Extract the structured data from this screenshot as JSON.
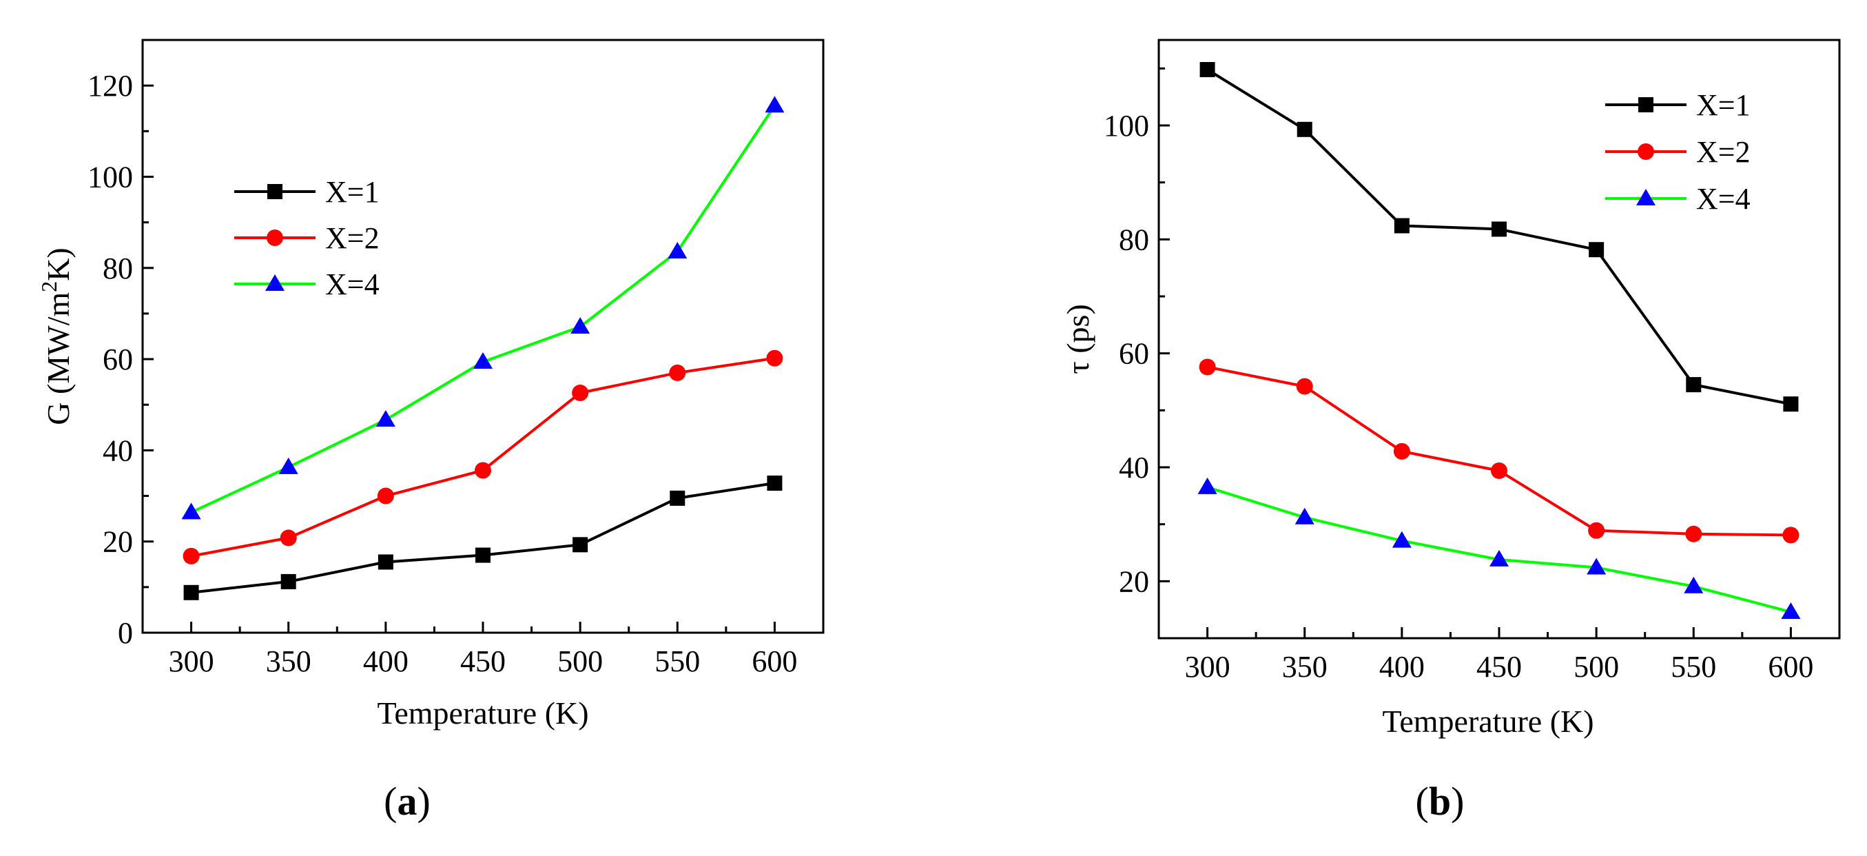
{
  "chart_data": [
    {
      "type": "line",
      "panel": "a",
      "caption": "(a)",
      "caption_prefix": "(",
      "caption_letter": "a",
      "caption_suffix": ")",
      "xlabel": "Temperature (K)",
      "ylabel_main": "G  (MW/m",
      "ylabel_sup": "2",
      "ylabel_end": "K)",
      "xlim": [
        275,
        625
      ],
      "ylim": [
        0,
        130
      ],
      "xticks": [
        300,
        350,
        400,
        450,
        500,
        550,
        600
      ],
      "yticks": [
        0,
        20,
        40,
        60,
        80,
        100,
        120
      ],
      "x": [
        300,
        350,
        400,
        450,
        500,
        550,
        600
      ],
      "legend_position": "upper-left",
      "series": [
        {
          "name": "X=1",
          "color": "#000000",
          "marker": "square",
          "values": [
            8.8,
            11.2,
            15.5,
            17.0,
            19.3,
            29.5,
            32.8
          ]
        },
        {
          "name": "X=2",
          "color": "#ff0000",
          "marker": "circle",
          "values": [
            16.8,
            20.8,
            30.0,
            35.6,
            52.6,
            57.0,
            60.2
          ]
        },
        {
          "name": "X=4",
          "color": "#00ff00",
          "marker": "triangle",
          "marker_color": "#0000ff",
          "values": [
            26.4,
            36.3,
            46.7,
            59.4,
            67.1,
            83.6,
            115.6
          ]
        }
      ]
    },
    {
      "type": "line",
      "panel": "b",
      "caption": "(b)",
      "caption_prefix": "(",
      "caption_letter": "b",
      "caption_suffix": ")",
      "xlabel": "Temperature (K)",
      "ylabel_main": "τ (ps)",
      "xlim": [
        275,
        625
      ],
      "ylim": [
        10,
        115
      ],
      "xticks": [
        300,
        350,
        400,
        450,
        500,
        550,
        600
      ],
      "yticks": [
        20,
        40,
        60,
        80,
        100
      ],
      "x": [
        300,
        350,
        400,
        450,
        500,
        550,
        600
      ],
      "legend_position": "upper-right",
      "series": [
        {
          "name": "X=1",
          "color": "#000000",
          "marker": "square",
          "values": [
            109.8,
            99.3,
            82.4,
            81.8,
            78.2,
            54.5,
            51.1
          ]
        },
        {
          "name": "X=2",
          "color": "#ff0000",
          "marker": "circle",
          "values": [
            57.6,
            54.2,
            42.8,
            39.4,
            28.9,
            28.3,
            28.1
          ]
        },
        {
          "name": "X=4",
          "color": "#00ff00",
          "marker": "triangle",
          "marker_color": "#0000ff",
          "values": [
            36.5,
            31.2,
            27.1,
            23.8,
            22.4,
            19.1,
            14.6
          ]
        }
      ]
    }
  ]
}
